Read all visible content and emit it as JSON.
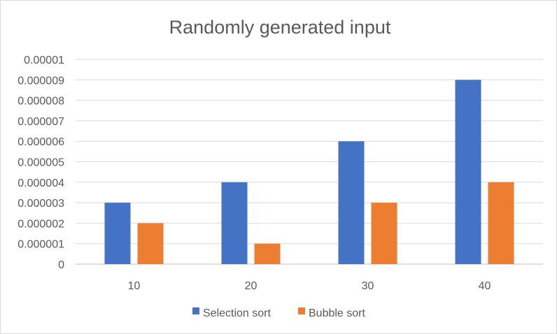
{
  "chart_data": {
    "type": "bar",
    "title": "Randomly generated input",
    "xlabel": "",
    "ylabel": "",
    "categories": [
      "10",
      "20",
      "30",
      "40"
    ],
    "series": [
      {
        "name": "Selection sort",
        "color": "#4472c4",
        "values": [
          3e-06,
          4e-06,
          6e-06,
          9e-06
        ]
      },
      {
        "name": "Bubble sort",
        "color": "#ed7d31",
        "values": [
          2e-06,
          1e-06,
          3e-06,
          4e-06
        ]
      }
    ],
    "ylim": [
      0,
      1e-05
    ],
    "yticks": [
      0,
      1e-06,
      2e-06,
      3e-06,
      4e-06,
      5e-06,
      6e-06,
      7e-06,
      8e-06,
      9e-06,
      1e-05
    ],
    "ytick_labels": [
      "0",
      "0.000001",
      "0.000002",
      "0.000003",
      "0.000004",
      "0.000005",
      "0.000006",
      "0.000007",
      "0.000008",
      "0.000009",
      "0.00001"
    ],
    "grid": true,
    "legend": "bottom"
  }
}
